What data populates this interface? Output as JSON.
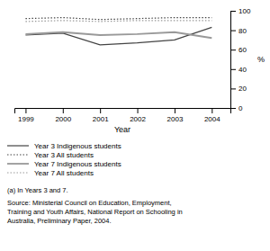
{
  "chart_data": {
    "type": "line",
    "xlabel": "Year",
    "ylabel": "%",
    "x": [
      1999,
      2000,
      2001,
      2002,
      2003,
      2004
    ],
    "series": [
      {
        "name": "Year 3 Indigenous students",
        "color": "#444444",
        "line_style": "solid",
        "values": [
          75,
          77,
          65,
          67,
          70,
          83
        ]
      },
      {
        "name": "Year 3 All students",
        "color": "#444444",
        "line_style": "dotted",
        "values": [
          92,
          93,
          91,
          92,
          93,
          93
        ]
      },
      {
        "name": "Year 7 Indigenous students",
        "color": "#999999",
        "line_style": "solid",
        "values": [
          76,
          78,
          75,
          76,
          78,
          72
        ]
      },
      {
        "name": "Year 7 All students",
        "color": "#999999",
        "line_style": "dotted",
        "values": [
          89,
          90,
          89,
          90,
          90,
          90
        ]
      }
    ],
    "xlim": [
      1998.7,
      2004.5
    ],
    "xticks": [
      1999,
      2000,
      2001,
      2002,
      2003,
      2004
    ],
    "ylim": [
      0,
      100
    ],
    "yticks": [
      0,
      20,
      40,
      60,
      80,
      100
    ],
    "grid": false,
    "annotations": [
      "(a) In Years 3 and 7.",
      "Source: Ministerial Council on Education, Employment,",
      "Training and Youth Affairs, National Report on Schooling in",
      "Australia, Preliminary Paper, 2004."
    ]
  }
}
